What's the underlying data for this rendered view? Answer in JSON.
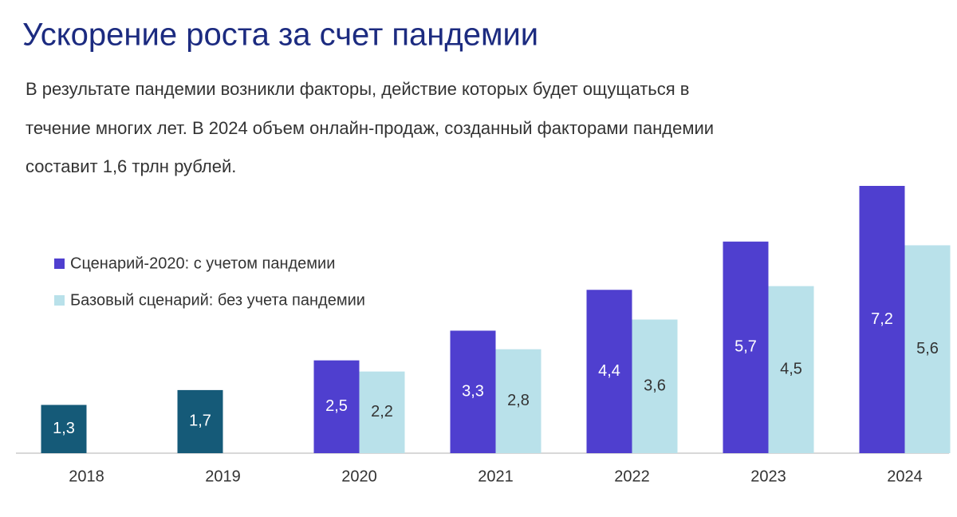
{
  "chart_data": {
    "type": "bar",
    "title": "Ускорение роста за счет пандемии",
    "subtitle": [
      "В результате пандемии возникли факторы, действие которых будет ощущаться в",
      "течение многих лет. В 2024 объем онлайн-продаж, созданный факторами пандемии",
      "составит 1,6 трлн рублей."
    ],
    "categories": [
      "2018",
      "2019",
      "2020",
      "2021",
      "2022",
      "2023",
      "2024"
    ],
    "series": [
      {
        "name": "Сценарий-2020: с учетом пандемии",
        "color": "#4f3fcf",
        "point_colors": [
          "#155a78",
          "#155a78",
          "#4f3fcf",
          "#4f3fcf",
          "#4f3fcf",
          "#4f3fcf",
          "#4f3fcf"
        ],
        "values": [
          1.3,
          1.7,
          2.5,
          3.3,
          4.4,
          5.7,
          7.2
        ],
        "value_labels": [
          "1,3",
          "1,7",
          "2,5",
          "3,3",
          "4,4",
          "5,7",
          "7,2"
        ]
      },
      {
        "name": "Базовый сценарий: без учета пандемии",
        "color": "#b9e1ea",
        "values": [
          null,
          null,
          2.2,
          2.8,
          3.6,
          4.5,
          5.6
        ],
        "value_labels": [
          null,
          null,
          "2,2",
          "2,8",
          "3,6",
          "4,5",
          "5,6"
        ]
      }
    ]
  }
}
